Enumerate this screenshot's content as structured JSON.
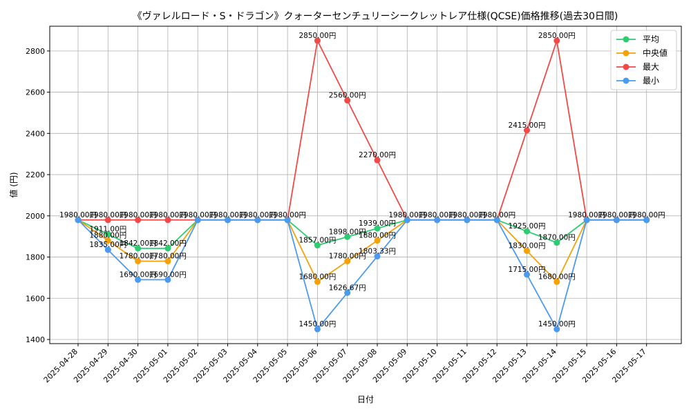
{
  "chart_data": {
    "type": "line",
    "title": "《ヴァレルロード・S・ドラゴン》クォーターセンチュリーシークレットレア仕様(QCSE)価格推移(過去30日間)",
    "xlabel": "日付",
    "ylabel": "値 (円)",
    "ylim": [
      1380,
      2920
    ],
    "yticks": [
      1400,
      1600,
      1800,
      2000,
      2200,
      2400,
      2600,
      2800
    ],
    "grid": true,
    "legend_position": "top-right",
    "categories": [
      "2025-04-28",
      "2025-04-29",
      "2025-04-30",
      "2025-05-01",
      "2025-05-02",
      "2025-05-03",
      "2025-05-04",
      "2025-05-05",
      "2025-05-06",
      "2025-05-07",
      "2025-05-08",
      "2025-05-09",
      "2025-05-10",
      "2025-05-11",
      "2025-05-12",
      "2025-05-13",
      "2025-05-14",
      "2025-05-15",
      "2025-05-16",
      "2025-05-17"
    ],
    "series": [
      {
        "name": "平均",
        "color": "#2ecc71",
        "values": [
          1980,
          1911,
          1842,
          1842,
          1980,
          1980,
          1980,
          1980,
          1857,
          1898,
          1939,
          1980,
          1980,
          1980,
          1980,
          1925,
          1870,
          1980,
          1980,
          1980
        ]
      },
      {
        "name": "中央値",
        "color": "#f5a10a",
        "values": [
          1980,
          1880,
          1780,
          1780,
          1980,
          1980,
          1980,
          1980,
          1680,
          1780,
          1880,
          1980,
          1980,
          1980,
          1980,
          1830,
          1680,
          1980,
          1980,
          1980
        ]
      },
      {
        "name": "最大",
        "color": "#f14848",
        "values": [
          1980,
          1980,
          1980,
          1980,
          1980,
          1980,
          1980,
          1980,
          2850,
          2560,
          2270,
          1980,
          1980,
          1980,
          1980,
          2415,
          2850,
          1980,
          1980,
          1980
        ]
      },
      {
        "name": "最小",
        "color": "#4a9af0",
        "values": [
          1980,
          1835,
          1690,
          1690,
          1980,
          1980,
          1980,
          1980,
          1450,
          1626.67,
          1803.33,
          1980,
          1980,
          1980,
          1980,
          1715,
          1450,
          1980,
          1980,
          1980
        ]
      }
    ],
    "data_labels": [
      {
        "series": 0,
        "index": 0,
        "text": "1980.00円"
      },
      {
        "series": 0,
        "index": 1,
        "text": "1911.00円"
      },
      {
        "series": 0,
        "index": 2,
        "text": "1842.00円"
      },
      {
        "series": 0,
        "index": 3,
        "text": "1842.00円"
      },
      {
        "series": 0,
        "index": 4,
        "text": "1980.00円"
      },
      {
        "series": 0,
        "index": 5,
        "text": "1980.00円"
      },
      {
        "series": 0,
        "index": 6,
        "text": "1980.00円"
      },
      {
        "series": 0,
        "index": 7,
        "text": "1980.00円"
      },
      {
        "series": 0,
        "index": 8,
        "text": "1857.00円"
      },
      {
        "series": 0,
        "index": 9,
        "text": "1898.00円"
      },
      {
        "series": 0,
        "index": 10,
        "text": "1939.00円"
      },
      {
        "series": 0,
        "index": 11,
        "text": "1980.00円"
      },
      {
        "series": 0,
        "index": 12,
        "text": "1980.00円"
      },
      {
        "series": 0,
        "index": 13,
        "text": "1980.00円"
      },
      {
        "series": 0,
        "index": 14,
        "text": "1980.00円"
      },
      {
        "series": 0,
        "index": 15,
        "text": "1925.00円"
      },
      {
        "series": 0,
        "index": 16,
        "text": "1870.00円"
      },
      {
        "series": 0,
        "index": 17,
        "text": "1980.00円"
      },
      {
        "series": 0,
        "index": 18,
        "text": "1980.00円"
      },
      {
        "series": 0,
        "index": 19,
        "text": "1980.00円"
      },
      {
        "series": 1,
        "index": 1,
        "text": "1880.00円"
      },
      {
        "series": 1,
        "index": 2,
        "text": "1780.00円"
      },
      {
        "series": 1,
        "index": 3,
        "text": "1780.00円"
      },
      {
        "series": 1,
        "index": 8,
        "text": "1680.00円"
      },
      {
        "series": 1,
        "index": 9,
        "text": "1780.00円"
      },
      {
        "series": 1,
        "index": 10,
        "text": "1880.00円"
      },
      {
        "series": 1,
        "index": 15,
        "text": "1830.00円"
      },
      {
        "series": 1,
        "index": 16,
        "text": "1680.00円"
      },
      {
        "series": 2,
        "index": 1,
        "text": "1980.00円"
      },
      {
        "series": 2,
        "index": 2,
        "text": "1980.00円"
      },
      {
        "series": 2,
        "index": 3,
        "text": "1980.00円"
      },
      {
        "series": 2,
        "index": 8,
        "text": "2850.00円"
      },
      {
        "series": 2,
        "index": 9,
        "text": "2560.00円"
      },
      {
        "series": 2,
        "index": 10,
        "text": "2270.00円"
      },
      {
        "series": 2,
        "index": 15,
        "text": "2415.00円"
      },
      {
        "series": 2,
        "index": 16,
        "text": "2850.00円"
      },
      {
        "series": 3,
        "index": 1,
        "text": "1835.00円"
      },
      {
        "series": 3,
        "index": 2,
        "text": "1690.00円"
      },
      {
        "series": 3,
        "index": 3,
        "text": "1690.00円"
      },
      {
        "series": 3,
        "index": 8,
        "text": "1450.00円"
      },
      {
        "series": 3,
        "index": 9,
        "text": "1626.67円"
      },
      {
        "series": 3,
        "index": 10,
        "text": "1803.33円"
      },
      {
        "series": 3,
        "index": 15,
        "text": "1715.00円"
      },
      {
        "series": 3,
        "index": 16,
        "text": "1450.00円"
      }
    ]
  }
}
